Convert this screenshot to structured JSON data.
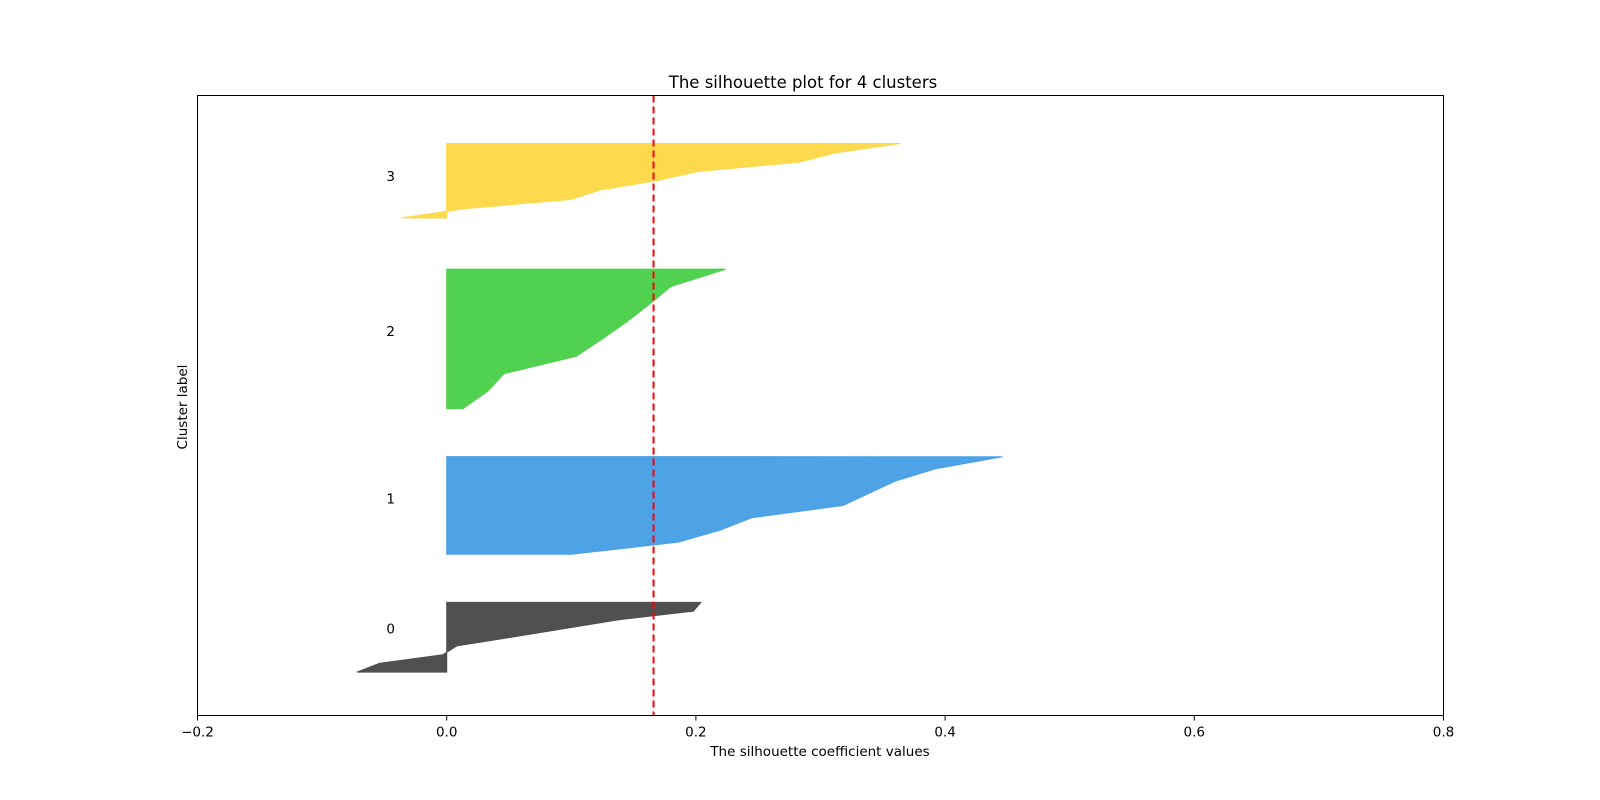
{
  "chart_data": {
    "type": "area",
    "title": "The silhouette plot for 4 clusters",
    "xlabel": "The silhouette coefficient values",
    "ylabel": "Cluster label",
    "xlim": [
      -0.2,
      0.8
    ],
    "ylim": [
      0,
      200
    ],
    "xticks": [
      -0.2,
      0.0,
      0.2,
      0.4,
      0.6,
      0.8
    ],
    "xtick_labels": [
      "−0.2",
      "0.0",
      "0.2",
      "0.4",
      "0.6",
      "0.8"
    ],
    "show_yticks": false,
    "grid": false,
    "average_silhouette_score": 0.166,
    "clusters": [
      {
        "label": "0",
        "color": "#4d4d4d",
        "samples": [
          -0.072,
          -0.054,
          -0.003,
          0.008,
          0.052,
          0.095,
          0.138,
          0.198,
          0.204
        ],
        "y_lower": 14,
        "y_upper": 36.5,
        "label_y": 28
      },
      {
        "label": "1",
        "color": "#4aa0e6",
        "samples": [
          0.1,
          0.186,
          0.22,
          0.245,
          0.318,
          0.339,
          0.36,
          0.392,
          0.446
        ],
        "y_lower": 52,
        "y_upper": 83.5,
        "label_y": 70
      },
      {
        "label": "2",
        "color": "#4dd14d",
        "samples": [
          0.013,
          0.033,
          0.046,
          0.104,
          0.125,
          0.145,
          0.163,
          0.18,
          0.224
        ],
        "y_lower": 99,
        "y_upper": 144,
        "label_y": 124
      },
      {
        "label": "3",
        "color": "#fdd84a",
        "samples": [
          -0.036,
          0.015,
          0.1,
          0.123,
          0.168,
          0.202,
          0.283,
          0.312,
          0.364
        ],
        "y_lower": 160.5,
        "y_upper": 184.5,
        "label_y": 174
      }
    ],
    "avg_line_color": "#ff0000"
  }
}
